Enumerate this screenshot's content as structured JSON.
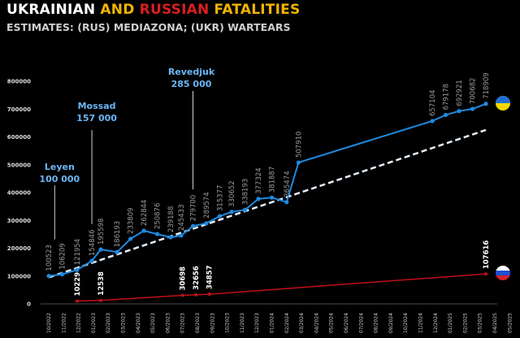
{
  "title": {
    "part1": "UKRAINIAN",
    "part2": "AND",
    "part3": "RUSSIAN",
    "part4": "FATALITIES"
  },
  "subtitle": "ESTIMATES: (RUS) MEDIAZONA; (UKR) WARTEARS",
  "colors": {
    "ukr": "#1e8ae0",
    "rus": "#c0101a",
    "trend": "#e6f0ff",
    "note": "#6cb6f5"
  },
  "chart_data": {
    "type": "line",
    "ylim": [
      0,
      800000
    ],
    "yticks": [
      "0",
      "100000",
      "200000",
      "300000",
      "400000",
      "500000",
      "600000",
      "700000",
      "800000"
    ],
    "categories": [
      "10/2022",
      "11/2022",
      "12/2022",
      "01/2023",
      "02/2023",
      "03/2023",
      "04/2023",
      "05/2023",
      "06/2023",
      "07/2023",
      "08/2023",
      "09/2023",
      "10/2023",
      "11/2023",
      "12/2023",
      "01/2024",
      "02/2024",
      "03/2024",
      "04/2024",
      "05/2024",
      "06/2024",
      "07/2024",
      "08/2024",
      "09/2024",
      "10/2024",
      "11/2024",
      "12/2024",
      "01/2025",
      "02/2025",
      "03/2025",
      "04/2025",
      "05/2025"
    ],
    "series": [
      {
        "name": "Ukraine",
        "points": [
          {
            "x": 0.0,
            "y": 100523,
            "label": "100523"
          },
          {
            "x": 0.9,
            "y": 106209,
            "label": "106209"
          },
          {
            "x": 1.9,
            "y": 121954,
            "label": "121954"
          },
          {
            "x": 2.9,
            "y": 154846,
            "label": "154846"
          },
          {
            "x": 3.5,
            "y": 195598,
            "label": "195598"
          },
          {
            "x": 4.6,
            "y": 186193,
            "label": "186193"
          },
          {
            "x": 5.5,
            "y": 233809,
            "label": "233809"
          },
          {
            "x": 6.4,
            "y": 262844,
            "label": "262844"
          },
          {
            "x": 7.3,
            "y": 250876,
            "label": "250876"
          },
          {
            "x": 8.2,
            "y": 239188,
            "label": "239188"
          },
          {
            "x": 8.9,
            "y": 245433,
            "label": "245433"
          },
          {
            "x": 9.7,
            "y": 279700,
            "label": "279700"
          },
          {
            "x": 10.6,
            "y": 289574,
            "label": "289574"
          },
          {
            "x": 11.5,
            "y": 315377,
            "label": "315377"
          },
          {
            "x": 12.3,
            "y": 330652,
            "label": "330652"
          },
          {
            "x": 13.2,
            "y": 338193,
            "label": "338193"
          },
          {
            "x": 14.1,
            "y": 377324,
            "label": "377324"
          },
          {
            "x": 15.0,
            "y": 381887,
            "label": "381887"
          },
          {
            "x": 16.0,
            "y": 365474,
            "label": "365474"
          },
          {
            "x": 16.8,
            "y": 507910,
            "label": "507910"
          },
          {
            "x": 25.8,
            "y": 657104,
            "label": "657104"
          },
          {
            "x": 26.7,
            "y": 679178,
            "label": "679178"
          },
          {
            "x": 27.6,
            "y": 692921,
            "label": "692921"
          },
          {
            "x": 28.5,
            "y": 700682,
            "label": "700682"
          },
          {
            "x": 29.4,
            "y": 718909,
            "label": "718909"
          }
        ]
      },
      {
        "name": "Russia",
        "points": [
          {
            "x": 1.9,
            "y": 10229,
            "label": "10229"
          },
          {
            "x": 3.5,
            "y": 12538,
            "label": "12538"
          },
          {
            "x": 9.0,
            "y": 30698,
            "label": "30698"
          },
          {
            "x": 9.9,
            "y": 32656,
            "label": "32656"
          },
          {
            "x": 10.8,
            "y": 34857,
            "label": "34857"
          },
          {
            "x": 29.4,
            "y": 107616,
            "label": "107616"
          }
        ]
      }
    ],
    "trendline": {
      "x": [
        0.0,
        29.4
      ],
      "y": [
        95000,
        625000
      ]
    },
    "annotations": [
      {
        "name": "Leyen",
        "value": "100 000",
        "x": 0.4
      },
      {
        "name": "Mossad",
        "value": "157 000",
        "x": 2.9
      },
      {
        "name": "Revedjuk",
        "value": "285 000",
        "x": 9.7
      }
    ]
  }
}
